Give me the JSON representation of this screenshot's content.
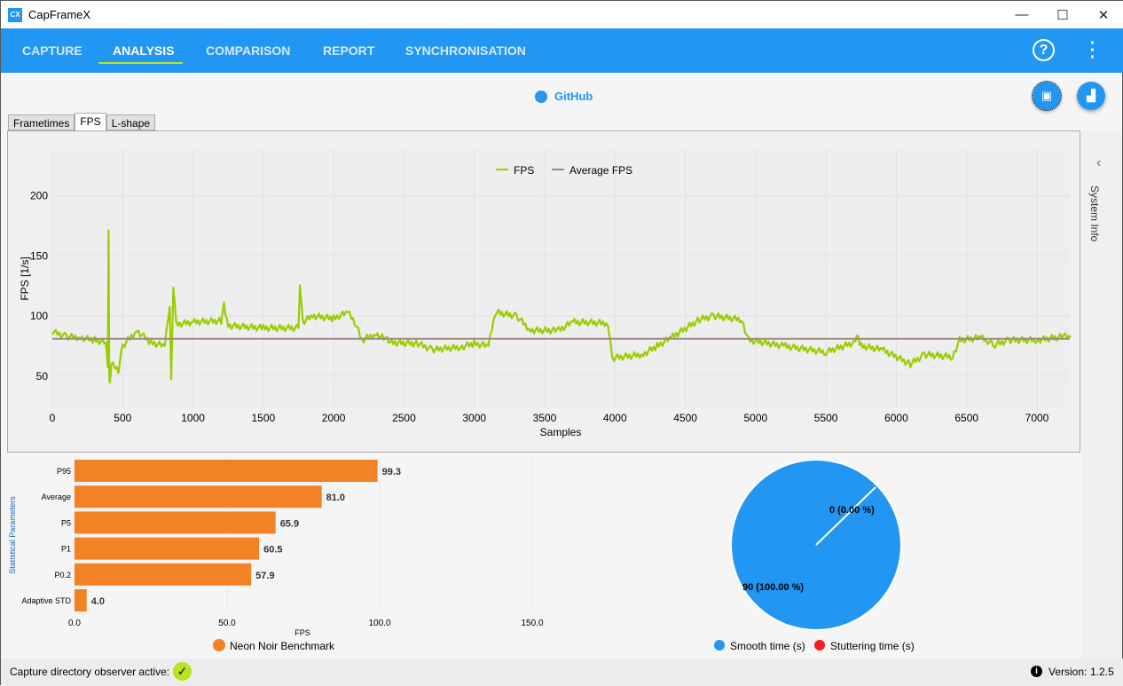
{
  "window": {
    "title": "CapFrameX",
    "logo": "CX",
    "minimize": "—",
    "maximize": "☐",
    "close": "✕"
  },
  "nav": {
    "items": [
      "CAPTURE",
      "ANALYSIS",
      "COMPARISON",
      "REPORT",
      "SYNCHRONISATION"
    ],
    "active": "ANALYSIS",
    "help": "?",
    "more": "⋮"
  },
  "github_label": "GitHub",
  "tabs": [
    "Frametimes",
    "FPS",
    "L-shape"
  ],
  "side_panel": {
    "label": "System Info",
    "chevron": "‹"
  },
  "chart_data": [
    {
      "type": "line",
      "title": "",
      "xlabel": "Samples",
      "ylabel": "FPS [1/s]",
      "xlim": [
        0,
        7300
      ],
      "ylim": [
        24,
        238
      ],
      "xticks": [
        0,
        500,
        1000,
        1500,
        2000,
        2500,
        3000,
        3500,
        4000,
        4500,
        5000,
        5500,
        6000,
        6500,
        7000
      ],
      "yticks": [
        50,
        100,
        150,
        200
      ],
      "legend": [
        "FPS",
        "Average FPS"
      ],
      "legend_position": "top-center",
      "series": [
        {
          "name": "FPS",
          "color": "#9acd00",
          "points": [
            [
              0,
              87
            ],
            [
              100,
              83
            ],
            [
              200,
              82
            ],
            [
              300,
              80
            ],
            [
              380,
              78
            ],
            [
              395,
              60
            ],
            [
              400,
              170
            ],
            [
              405,
              48
            ],
            [
              410,
              42
            ],
            [
              420,
              60
            ],
            [
              470,
              55
            ],
            [
              500,
              75
            ],
            [
              600,
              88
            ],
            [
              700,
              78
            ],
            [
              800,
              75
            ],
            [
              835,
              110
            ],
            [
              845,
              46
            ],
            [
              860,
              125
            ],
            [
              880,
              93
            ],
            [
              1000,
              95
            ],
            [
              1200,
              96
            ],
            [
              1220,
              110
            ],
            [
              1250,
              92
            ],
            [
              1500,
              90
            ],
            [
              1750,
              90
            ],
            [
              1760,
              128
            ],
            [
              1780,
              95
            ],
            [
              1850,
              100
            ],
            [
              2000,
              98
            ],
            [
              2100,
              103
            ],
            [
              2150,
              95
            ],
            [
              2200,
              80
            ],
            [
              2300,
              85
            ],
            [
              2380,
              80
            ],
            [
              2400,
              78
            ],
            [
              2600,
              77
            ],
            [
              2700,
              72
            ],
            [
              2900,
              74
            ],
            [
              3000,
              77
            ],
            [
              3100,
              75
            ],
            [
              3150,
              103
            ],
            [
              3300,
              100
            ],
            [
              3400,
              88
            ],
            [
              3600,
              88
            ],
            [
              3700,
              95
            ],
            [
              3950,
              94
            ],
            [
              3980,
              65
            ],
            [
              4200,
              68
            ],
            [
              4300,
              75
            ],
            [
              4400,
              82
            ],
            [
              4600,
              97
            ],
            [
              4700,
              100
            ],
            [
              4900,
              97
            ],
            [
              4950,
              80
            ],
            [
              5200,
              75
            ],
            [
              5500,
              70
            ],
            [
              5700,
              78
            ],
            [
              5720,
              85
            ],
            [
              5750,
              75
            ],
            [
              5900,
              72
            ],
            [
              6100,
              60
            ],
            [
              6200,
              68
            ],
            [
              6400,
              66
            ],
            [
              6450,
              80
            ],
            [
              6600,
              82
            ],
            [
              6700,
              76
            ],
            [
              6800,
              80
            ],
            [
              7000,
              80
            ],
            [
              7200,
              83
            ],
            [
              7240,
              82
            ]
          ]
        },
        {
          "name": "Average FPS",
          "color": "#a1887f",
          "value": 81.0
        }
      ]
    },
    {
      "type": "bar",
      "orientation": "horizontal",
      "xlabel": "FPS",
      "ylabel": "Statistical Parameters",
      "xlim": [
        0,
        175
      ],
      "xticks": [
        "0.0",
        "50.0",
        "100.0",
        "150.0"
      ],
      "categories": [
        "P95",
        "Average",
        "P5",
        "P1",
        "P0.2",
        "Adaptive STD"
      ],
      "values": [
        99.3,
        81.0,
        65.9,
        60.5,
        57.9,
        4.0
      ],
      "labels": [
        "99.3",
        "81.0",
        "65.9",
        "60.5",
        "57.9",
        "4.0"
      ],
      "legend": [
        "Neon Noir Benchmark"
      ],
      "color": "#f38125"
    },
    {
      "type": "pie",
      "slices": [
        {
          "name": "Smooth time (s)",
          "value": 90,
          "label": "90 (100.00 %)",
          "color": "#2196f3"
        },
        {
          "name": "Stuttering time (s)",
          "value": 0,
          "label": "0 (0.00 %)",
          "color": "#f41c1c"
        }
      ],
      "legend": [
        "Smooth time (s)",
        "Stuttering time (s)"
      ]
    }
  ],
  "status": {
    "observer_label": "Capture directory observer active:",
    "version_label": "Version:",
    "version": "1.2.5",
    "info_icon": "i"
  }
}
